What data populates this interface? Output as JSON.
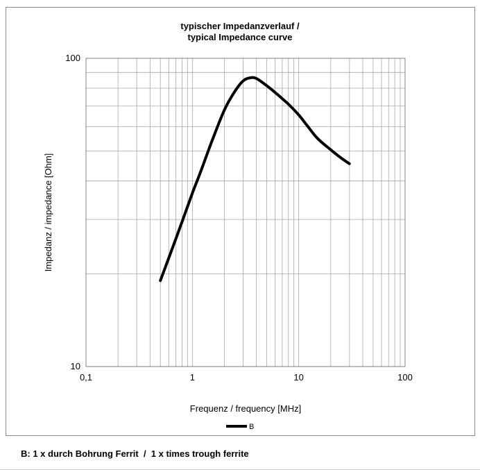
{
  "chart_data": {
    "type": "line",
    "title_line1": "typischer Impedanzverlauf /",
    "title_line2": "typical Impedance curve",
    "xlabel": "Frequenz / frequency [MHz]",
    "ylabel": "Impedanz / impedance [Ohm]",
    "x_scale": "log",
    "y_scale": "log",
    "xlim": [
      0.1,
      100
    ],
    "ylim": [
      10,
      100
    ],
    "x_ticks": [
      {
        "value": 0.1,
        "label": "0,1"
      },
      {
        "value": 1,
        "label": "1"
      },
      {
        "value": 10,
        "label": "10"
      },
      {
        "value": 100,
        "label": "100"
      }
    ],
    "y_ticks": [
      {
        "value": 10,
        "label": "10"
      },
      {
        "value": 100,
        "label": "100"
      }
    ],
    "grid": true,
    "legend_position": "bottom",
    "series": [
      {
        "name": "B",
        "color": "#000000",
        "x": [
          0.5,
          0.6,
          0.7,
          0.8,
          1.0,
          1.2,
          1.5,
          2.0,
          2.5,
          3.0,
          3.5,
          4.0,
          5.0,
          6.0,
          7.0,
          8.0,
          10,
          12,
          15,
          20,
          25,
          30
        ],
        "y": [
          19,
          22.5,
          26,
          29.5,
          36.5,
          43,
          53,
          68,
          78,
          84.5,
          86.5,
          86,
          81.5,
          77.5,
          74,
          71,
          65.5,
          60.5,
          55,
          50.5,
          47.5,
          45.5
        ]
      }
    ]
  },
  "footnote": "B: 1 x durch Bohrung Ferrit  /  1 x times trough ferrite"
}
